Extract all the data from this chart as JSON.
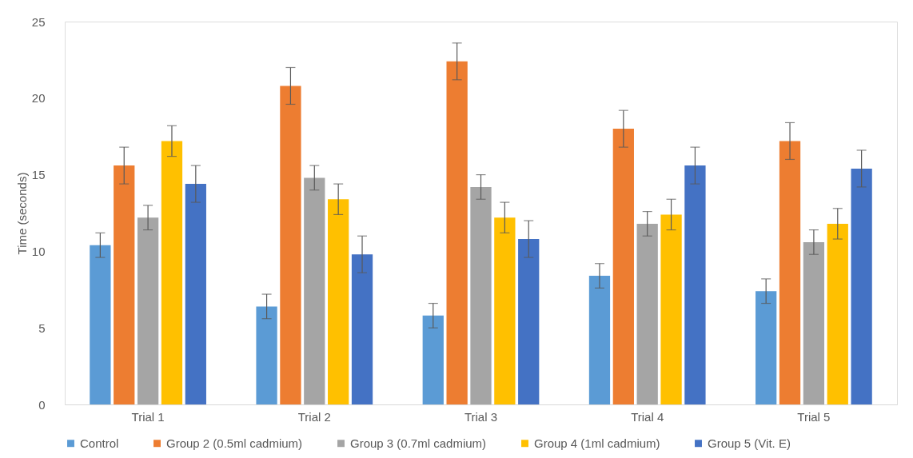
{
  "chart_data": {
    "type": "bar",
    "ylabel": "Time (seconds)",
    "categories": [
      "Trial 1",
      "Trial 2",
      "Trial 3",
      "Trial 4",
      "Trial 5"
    ],
    "series": [
      {
        "name": "Control",
        "color": "#5b9bd5",
        "values": [
          10.4,
          6.4,
          5.8,
          8.4,
          7.4
        ],
        "errors": [
          0.8,
          0.8,
          0.8,
          0.8,
          0.8
        ]
      },
      {
        "name": "Group 2 (0.5ml cadmium)",
        "color": "#ed7d31",
        "values": [
          15.6,
          20.8,
          22.4,
          18.0,
          17.2
        ],
        "errors": [
          1.2,
          1.2,
          1.2,
          1.2,
          1.2
        ]
      },
      {
        "name": "Group 3 (0.7ml cadmium)",
        "color": "#a5a5a5",
        "values": [
          12.2,
          14.8,
          14.2,
          11.8,
          10.6
        ],
        "errors": [
          0.8,
          0.8,
          0.8,
          0.8,
          0.8
        ]
      },
      {
        "name": "Group 4 (1ml cadmium)",
        "color": "#ffc000",
        "values": [
          17.2,
          13.4,
          12.2,
          12.4,
          11.8
        ],
        "errors": [
          1.0,
          1.0,
          1.0,
          1.0,
          1.0
        ]
      },
      {
        "name": "Group 5 (Vit. E)",
        "color": "#4472c4",
        "values": [
          14.4,
          9.8,
          10.8,
          15.6,
          15.4
        ],
        "errors": [
          1.2,
          1.2,
          1.2,
          1.2,
          1.2
        ]
      }
    ],
    "ylim": [
      0,
      25
    ],
    "yticks": [
      0,
      5,
      10,
      15,
      20,
      25
    ],
    "grid": false,
    "legend": "bottom"
  }
}
